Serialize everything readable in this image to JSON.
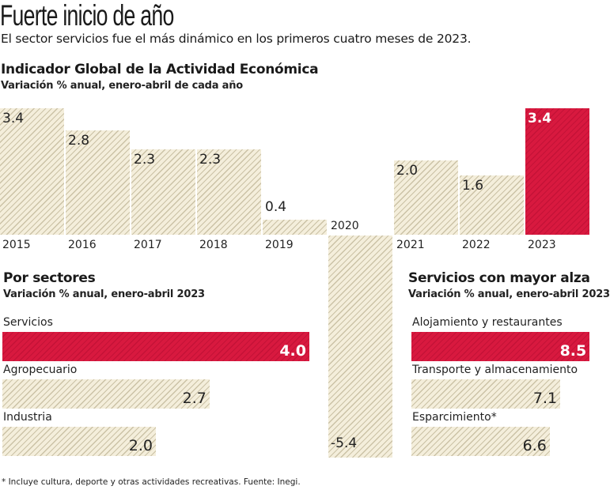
{
  "title": "Fuerte inicio de año",
  "subtitle": "El sector servicios fue el más dinámico en los primeros cuatro meses de 2023.",
  "footnote": "* Incluye cultura, deporte y otras actividades recreativas. Fuente: Inegi.",
  "colors": {
    "highlight": "#d8193f",
    "base": "#f4eedb",
    "hatch": "#cbc2a6"
  },
  "chart_data": [
    {
      "type": "bar",
      "title": "Indicador Global de la Actividad Económica",
      "subtitle": "Variación % anual, enero-abril de cada año",
      "categories": [
        "2015",
        "2016",
        "2017",
        "2018",
        "2019",
        "2020",
        "2021",
        "2022",
        "2023"
      ],
      "values": [
        3.4,
        2.8,
        2.3,
        2.3,
        0.4,
        -5.4,
        2.0,
        1.6,
        3.4
      ],
      "labels": [
        "3.4",
        "2.8",
        "2.3",
        "2.3",
        "0.4",
        "-5.4",
        "2.0",
        "1.6",
        "3.4"
      ],
      "highlight": "2023"
    },
    {
      "type": "bar",
      "orientation": "horizontal",
      "title": "Por sectores",
      "subtitle": "Variación % anual, enero-abril 2023",
      "categories": [
        "Servicios",
        "Agropecuario",
        "Industria"
      ],
      "values": [
        4.0,
        2.7,
        2.0
      ],
      "labels": [
        "4.0",
        "2.7",
        "2.0"
      ],
      "highlight": "Servicios"
    },
    {
      "type": "bar",
      "orientation": "horizontal",
      "title": "Servicios con mayor alza",
      "subtitle": "Variación % anual, enero-abril 2023",
      "categories": [
        "Alojamiento y restaurantes",
        "Transporte y almacenamiento",
        "Esparcimiento*"
      ],
      "values": [
        8.5,
        7.1,
        6.6
      ],
      "labels": [
        "8.5",
        "7.1",
        "6.6"
      ],
      "highlight": "Alojamiento y restaurantes"
    }
  ]
}
